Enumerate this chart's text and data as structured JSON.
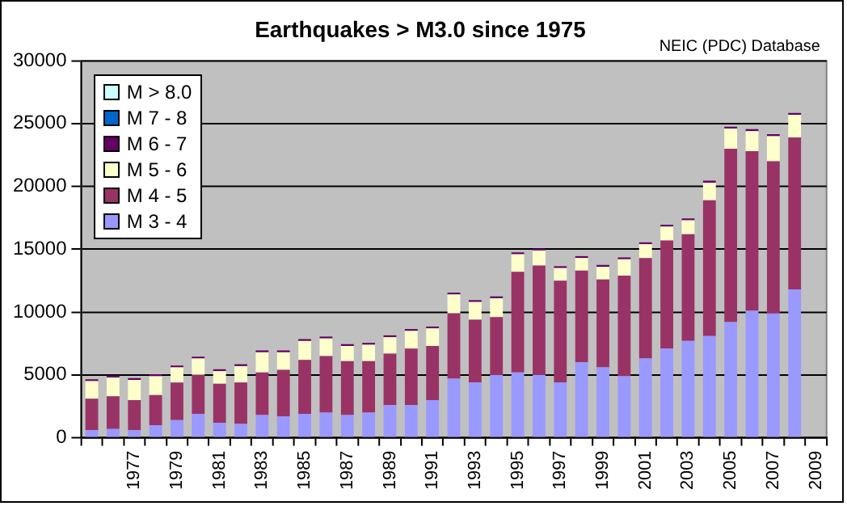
{
  "chart_data": {
    "type": "bar",
    "title": "Earthquakes > M3.0 since 1975",
    "annotations": [
      "NEIC (PDC) Database"
    ],
    "categories": [
      null,
      null,
      "1977",
      null,
      "1979",
      null,
      "1981",
      null,
      "1983",
      null,
      "1985",
      null,
      "1987",
      null,
      "1989",
      null,
      "1991",
      null,
      "1993",
      null,
      "1995",
      null,
      "1997",
      null,
      "1999",
      null,
      "2001",
      null,
      "2003",
      null,
      "2005",
      null,
      "2007",
      null,
      "2009"
    ],
    "stacked": true,
    "series": [
      {
        "name": "M 3 - 4",
        "color": "#9999ff",
        "values": [
          600,
          700,
          600,
          1000,
          1400,
          1900,
          1200,
          1100,
          1800,
          1700,
          1900,
          2000,
          1800,
          2000,
          2600,
          2600,
          3000,
          4700,
          4400,
          5000,
          5200,
          5000,
          4400,
          6000,
          5600,
          4900,
          6300,
          7100,
          7700,
          8100,
          9200,
          10100,
          9900,
          11800,
          null
        ]
      },
      {
        "name": "M 4 - 5",
        "color": "#993366",
        "values": [
          2500,
          2600,
          2400,
          2400,
          3000,
          3100,
          3100,
          3300,
          3400,
          3700,
          4300,
          4500,
          4300,
          4100,
          4100,
          4500,
          4300,
          5200,
          5000,
          4600,
          8000,
          8700,
          8100,
          7300,
          7000,
          8000,
          8000,
          8600,
          8500,
          10800,
          13800,
          12700,
          12100,
          12100,
          null
        ]
      },
      {
        "name": "M 5 - 6",
        "color": "#ffffcc",
        "values": [
          1400,
          1500,
          1600,
          1500,
          1200,
          1300,
          1000,
          1300,
          1600,
          1400,
          1500,
          1400,
          1200,
          1300,
          1300,
          1400,
          1400,
          1500,
          1400,
          1500,
          1400,
          1200,
          1000,
          1000,
          1000,
          1300,
          1100,
          1100,
          1100,
          1400,
          1600,
          1600,
          2000,
          1800,
          null
        ]
      },
      {
        "name": "M 6 - 7",
        "color": "#660066",
        "values": [
          150,
          150,
          150,
          150,
          150,
          150,
          150,
          150,
          150,
          150,
          150,
          150,
          150,
          150,
          150,
          150,
          150,
          150,
          150,
          150,
          150,
          150,
          150,
          150,
          150,
          150,
          150,
          150,
          150,
          150,
          150,
          150,
          150,
          150,
          null
        ]
      },
      {
        "name": "M 7 - 8",
        "color": "#0066cc",
        "values": [
          0,
          0,
          0,
          0,
          0,
          0,
          0,
          0,
          0,
          0,
          0,
          0,
          0,
          0,
          0,
          0,
          0,
          0,
          0,
          0,
          0,
          0,
          0,
          0,
          0,
          0,
          0,
          0,
          0,
          0,
          0,
          0,
          0,
          0,
          null
        ]
      },
      {
        "name": "M > 8.0",
        "color": "#ccffff",
        "values": [
          0,
          0,
          0,
          0,
          0,
          0,
          0,
          0,
          0,
          0,
          0,
          0,
          0,
          0,
          0,
          0,
          0,
          0,
          0,
          0,
          0,
          0,
          0,
          0,
          0,
          0,
          0,
          0,
          0,
          0,
          0,
          0,
          0,
          0,
          null
        ]
      }
    ],
    "ylim": [
      0,
      30000
    ],
    "yticks": [
      0,
      5000,
      10000,
      15000,
      20000,
      25000,
      30000
    ],
    "grid": "y",
    "legend": "top left"
  }
}
